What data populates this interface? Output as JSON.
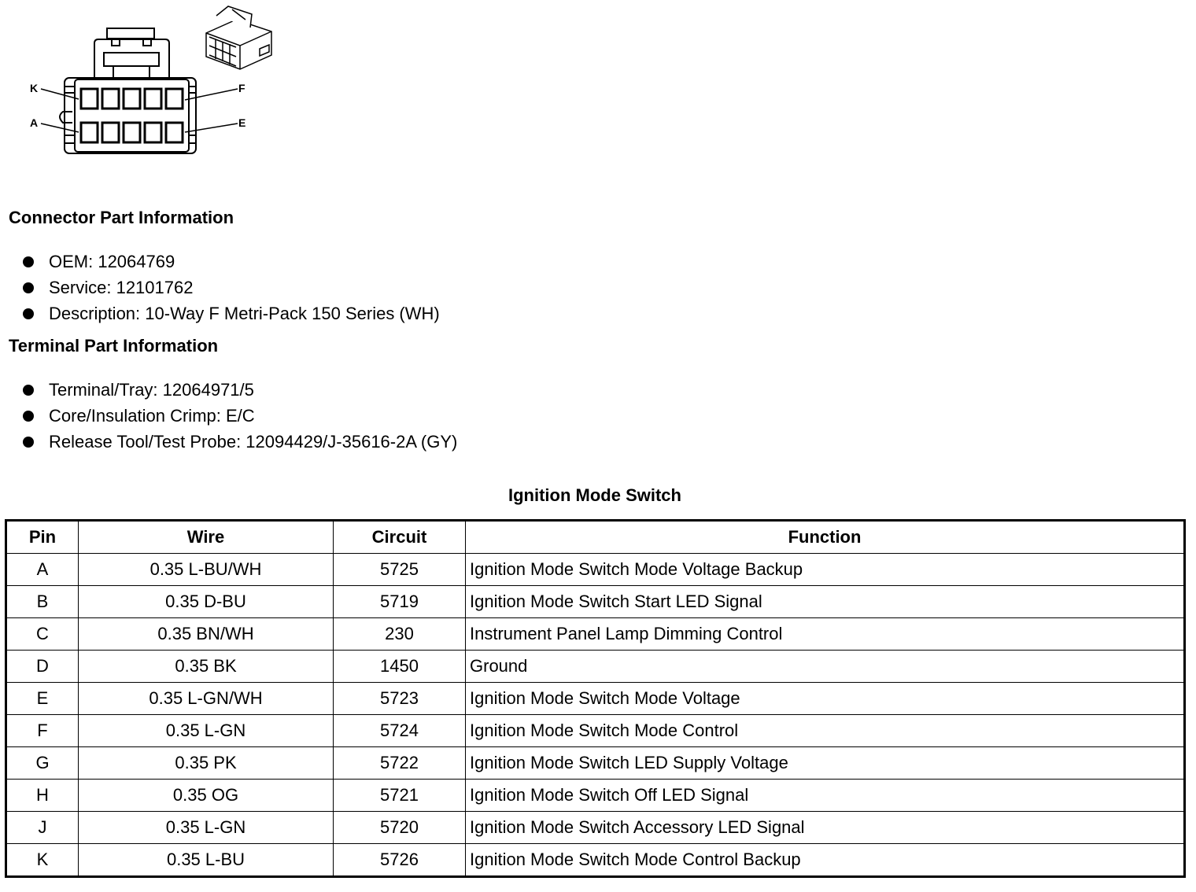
{
  "diagram": {
    "pin_labels": {
      "top_left": "K",
      "top_right": "F",
      "bottom_left": "A",
      "bottom_right": "E"
    }
  },
  "connector": {
    "heading": "Connector Part Information",
    "items": [
      "OEM: 12064769",
      "Service: 12101762",
      "Description: 10-Way F Metri-Pack 150 Series (WH)"
    ]
  },
  "terminal": {
    "heading": "Terminal Part Information",
    "items": [
      "Terminal/Tray: 12064971/5",
      "Core/Insulation Crimp: E/C",
      "Release Tool/Test Probe: 12094429/J-35616-2A (GY)"
    ]
  },
  "table": {
    "title": "Ignition Mode Switch",
    "headers": [
      "Pin",
      "Wire",
      "Circuit",
      "Function"
    ],
    "rows": [
      [
        "A",
        "0.35 L-BU/WH",
        "5725",
        "Ignition Mode Switch Mode Voltage Backup"
      ],
      [
        "B",
        "0.35 D-BU",
        "5719",
        "Ignition Mode Switch Start LED Signal"
      ],
      [
        "C",
        "0.35 BN/WH",
        "230",
        "Instrument Panel Lamp Dimming Control"
      ],
      [
        "D",
        "0.35 BK",
        "1450",
        "Ground"
      ],
      [
        "E",
        "0.35 L-GN/WH",
        "5723",
        "Ignition Mode Switch Mode Voltage"
      ],
      [
        "F",
        "0.35 L-GN",
        "5724",
        "Ignition Mode Switch Mode Control"
      ],
      [
        "G",
        "0.35 PK",
        "5722",
        "Ignition Mode Switch LED Supply Voltage"
      ],
      [
        "H",
        "0.35 OG",
        "5721",
        "Ignition Mode Switch Off LED Signal"
      ],
      [
        "J",
        "0.35 L-GN",
        "5720",
        "Ignition Mode Switch Accessory LED Signal"
      ],
      [
        "K",
        "0.35 L-BU",
        "5726",
        "Ignition Mode Switch Mode Control Backup"
      ]
    ]
  }
}
